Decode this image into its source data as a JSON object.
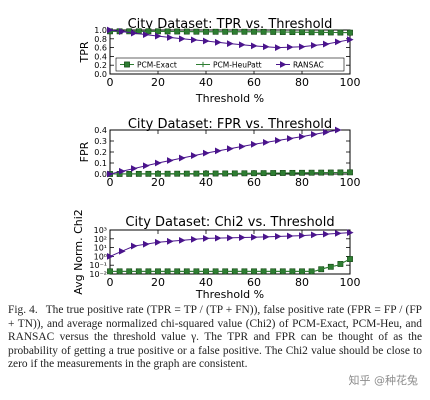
{
  "figure": {
    "caption_label": "Fig. 4.",
    "caption_text": "The true positive rate (TPR = TP / (TP + FN)), false positive rate (FPR = FP / (FP + TN)), and average normalized chi-squared value (Chi2) of PCM-Exact, PCM-Heu, and RANSAC versus the threshold value γ. The TPR and FPR can be thought of as the probability of getting a true positive or a false positive. The Chi2 value should be close to zero if the measurements in the graph are consistent.",
    "watermark": "知乎 @种花兔"
  },
  "colors": {
    "exact": "#2e7d32",
    "heu": "#2e7d32",
    "ransac": "#4a148c",
    "axis": "#000000"
  },
  "chart_data": [
    {
      "type": "line",
      "title": "City Dataset: TPR vs. Threshold",
      "xlabel": "Threshold %",
      "ylabel": "TPR",
      "xlim": [
        0,
        100
      ],
      "ylim": [
        0.0,
        1.0
      ],
      "xticks": [
        0,
        20,
        40,
        60,
        80,
        100
      ],
      "yticks": [
        0.0,
        0.2,
        0.4,
        0.6,
        0.8,
        1.0
      ],
      "ytick_labels": [
        "0.0",
        "0.2",
        "0.4",
        "0.6",
        "0.8",
        "1.0"
      ],
      "legend": {
        "placement": "lower-center",
        "entries": [
          "PCM-Exact",
          "PCM-HeuPatt",
          "RANSAC"
        ]
      },
      "series": [
        {
          "name": "PCM-Exact",
          "marker": "square",
          "points": [
            [
              0,
              0.97
            ],
            [
              20,
              0.97
            ],
            [
              40,
              0.96
            ],
            [
              60,
              0.96
            ],
            [
              80,
              0.95
            ],
            [
              100,
              0.94
            ]
          ]
        },
        {
          "name": "PCM-HeuPatt",
          "marker": "plus",
          "points": [
            [
              0,
              0.97
            ],
            [
              20,
              0.97
            ],
            [
              40,
              0.96
            ],
            [
              60,
              0.96
            ],
            [
              80,
              0.95
            ],
            [
              100,
              0.94
            ]
          ]
        },
        {
          "name": "RANSAC",
          "marker": "triangle-right",
          "points": [
            [
              0,
              1.0
            ],
            [
              10,
              0.93
            ],
            [
              20,
              0.86
            ],
            [
              30,
              0.8
            ],
            [
              40,
              0.75
            ],
            [
              50,
              0.69
            ],
            [
              60,
              0.64
            ],
            [
              70,
              0.6
            ],
            [
              80,
              0.62
            ],
            [
              90,
              0.68
            ],
            [
              100,
              0.78
            ]
          ]
        }
      ]
    },
    {
      "type": "line",
      "title": "City Dataset: FPR vs. Threshold",
      "xlabel": "",
      "ylabel": "FPR",
      "xlim": [
        0,
        100
      ],
      "ylim": [
        0.0,
        0.4
      ],
      "xticks": [
        0,
        20,
        40,
        60,
        80,
        100
      ],
      "yticks": [
        0.0,
        0.1,
        0.2,
        0.3,
        0.4
      ],
      "ytick_labels": [
        "0.0",
        "0.1",
        "0.2",
        "0.3",
        "0.4"
      ],
      "series": [
        {
          "name": "PCM-Exact",
          "marker": "square",
          "points": [
            [
              0,
              0.0
            ],
            [
              50,
              0.005
            ],
            [
              100,
              0.015
            ]
          ]
        },
        {
          "name": "PCM-HeuPatt",
          "marker": "plus",
          "points": [
            [
              0,
              0.0
            ],
            [
              50,
              0.005
            ],
            [
              100,
              0.015
            ]
          ]
        },
        {
          "name": "RANSAC",
          "marker": "triangle-right",
          "points": [
            [
              0,
              0.0
            ],
            [
              20,
              0.1
            ],
            [
              40,
              0.19
            ],
            [
              60,
              0.27
            ],
            [
              80,
              0.34
            ],
            [
              95,
              0.4
            ]
          ]
        }
      ]
    },
    {
      "type": "line",
      "title": "City Dataset: Chi2 vs. Threshold",
      "xlabel": "Threshold %",
      "ylabel": "Avg Norm. Chi2",
      "xlim": [
        0,
        100
      ],
      "ylim": [
        0.01,
        1000
      ],
      "yscale": "log",
      "xticks": [
        0,
        20,
        40,
        60,
        80,
        100
      ],
      "yticks": [
        0.01,
        0.1,
        1,
        10,
        100,
        1000
      ],
      "ytick_labels": [
        "10⁻²",
        "10⁻¹",
        "10⁰",
        "10¹",
        "10²",
        "10³"
      ],
      "series": [
        {
          "name": "PCM-Exact",
          "marker": "square",
          "points": [
            [
              0,
              0.02
            ],
            [
              40,
              0.02
            ],
            [
              85,
              0.02
            ],
            [
              90,
              0.05
            ],
            [
              95,
              0.1
            ],
            [
              100,
              0.5
            ]
          ]
        },
        {
          "name": "PCM-HeuPatt",
          "marker": "plus",
          "points": [
            [
              0,
              0.02
            ],
            [
              40,
              0.02
            ],
            [
              85,
              0.02
            ],
            [
              90,
              0.05
            ],
            [
              95,
              0.1
            ],
            [
              100,
              0.5
            ]
          ]
        },
        {
          "name": "RANSAC",
          "marker": "triangle-right",
          "points": [
            [
              0,
              1
            ],
            [
              10,
              15
            ],
            [
              20,
              40
            ],
            [
              40,
              110
            ],
            [
              60,
              150
            ],
            [
              80,
              230
            ],
            [
              100,
              500
            ]
          ]
        }
      ]
    }
  ]
}
